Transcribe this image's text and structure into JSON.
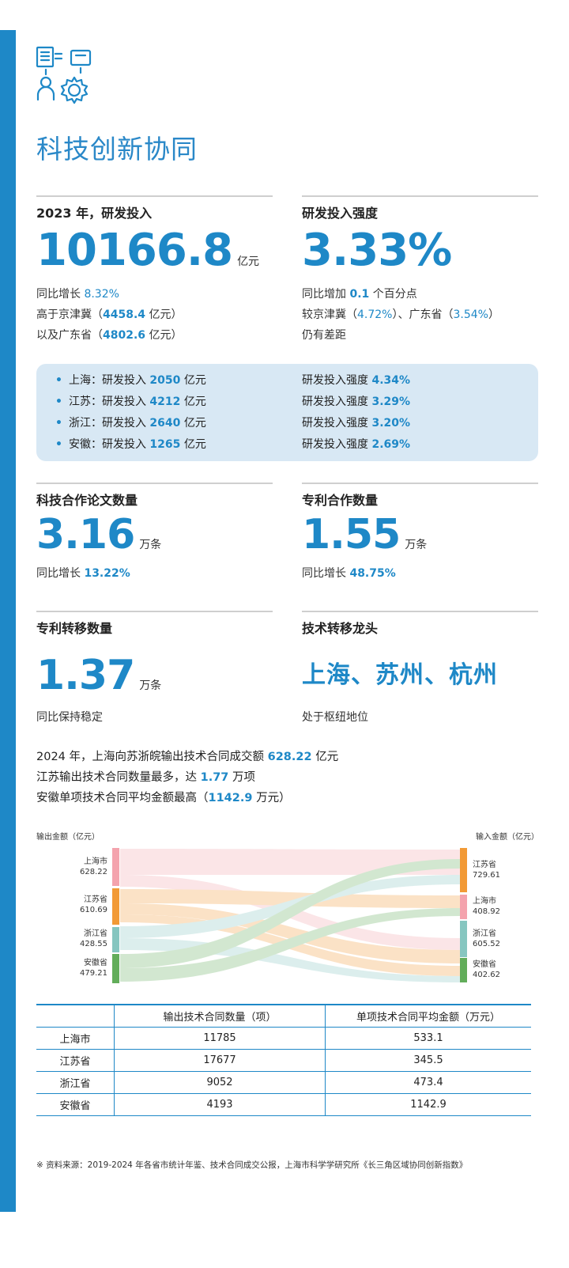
{
  "title": "科技创新协同",
  "rd": {
    "label": "2023 年，研发投入",
    "value": "10166.8",
    "unit": "亿元",
    "l1_pre": "同比增长 ",
    "l1_val": "8.32%",
    "l2_pre": "高于京津冀（",
    "l2_val": "4458.4",
    "l2_post": " 亿元）",
    "l3_pre": "以及广东省（",
    "l3_val": "4802.6",
    "l3_post": " 亿元）"
  },
  "intensity": {
    "label": "研发投入强度",
    "value": "3.33%",
    "l1_pre": "同比增加 ",
    "l1_val": "0.1",
    "l1_post": " 个百分点",
    "l2_pre": "较京津冀（",
    "l2_val": "4.72%",
    "l2_mid": "）、广东省（",
    "l2_val2": "3.54%",
    "l2_post": "）",
    "l3": "仍有差距"
  },
  "provinces": [
    {
      "name": "上海：研发投入 ",
      "rd": "2050",
      "unit": " 亿元",
      "int_label": "研发投入强度 ",
      "int": "4.34%"
    },
    {
      "name": "江苏：研发投入 ",
      "rd": "4212",
      "unit": " 亿元",
      "int_label": "研发投入强度 ",
      "int": "3.29%"
    },
    {
      "name": "浙江：研发投入 ",
      "rd": "2640",
      "unit": " 亿元",
      "int_label": "研发投入强度 ",
      "int": "3.20%"
    },
    {
      "name": "安徽：研发投入 ",
      "rd": "1265",
      "unit": " 亿元",
      "int_label": "研发投入强度 ",
      "int": "2.69%"
    }
  ],
  "papers": {
    "label": "科技合作论文数量",
    "value": "3.16",
    "unit": "万条",
    "note_pre": "同比增长 ",
    "note_val": "13.22%"
  },
  "patents": {
    "label": "专利合作数量",
    "value": "1.55",
    "unit": "万条",
    "note_pre": "同比增长 ",
    "note_val": "48.75%"
  },
  "transfer": {
    "label": "专利转移数量",
    "value": "1.37",
    "unit": "万条",
    "note": "同比保持稳定"
  },
  "leaders": {
    "label": "技术转移龙头",
    "value": "上海、苏州、杭州",
    "note": "处于枢纽地位"
  },
  "para": {
    "l1_pre": "2024 年，上海向苏浙皖输出技术合同成交额 ",
    "l1_val": "628.22",
    "l1_post": " 亿元",
    "l2_pre": "江苏输出技术合同数量最多，达 ",
    "l2_val": "1.77",
    "l2_post": " 万项",
    "l3_pre": "安徽单项技术合同平均金额最高（",
    "l3_val": "1142.9",
    "l3_post": " 万元）"
  },
  "sankey": {
    "left_title": "输出金额（亿元）",
    "right_title": "输入金额（亿元）",
    "left": [
      {
        "name": "上海市",
        "value": "628.22",
        "color": "#f4a3ad"
      },
      {
        "name": "江苏省",
        "value": "610.69",
        "color": "#f29a36"
      },
      {
        "name": "浙江省",
        "value": "428.55",
        "color": "#86c6c0"
      },
      {
        "name": "安徽省",
        "value": "479.21",
        "color": "#62ad5a"
      }
    ],
    "right": [
      {
        "name": "江苏省",
        "value": "729.61",
        "color": "#f29a36"
      },
      {
        "name": "上海市",
        "value": "408.92",
        "color": "#f4a3ad"
      },
      {
        "name": "浙江省",
        "value": "605.52",
        "color": "#86c6c0"
      },
      {
        "name": "安徽省",
        "value": "402.62",
        "color": "#62ad5a"
      }
    ]
  },
  "table": {
    "headers": [
      "",
      "输出技术合同数量（项）",
      "单项技术合同平均金额（万元）"
    ],
    "rows": [
      [
        "上海市",
        "11785",
        "533.1"
      ],
      [
        "江苏省",
        "17677",
        "345.5"
      ],
      [
        "浙江省",
        "9052",
        "473.4"
      ],
      [
        "安徽省",
        "4193",
        "1142.9"
      ]
    ]
  },
  "source": "※ 资料来源：2019-2024 年各省市统计年鉴、技术合同成交公报，上海市科学学研究所《长三角区域协同创新指数》",
  "colors": {
    "accent": "#1e88c7",
    "panel": "#d8e8f4"
  }
}
